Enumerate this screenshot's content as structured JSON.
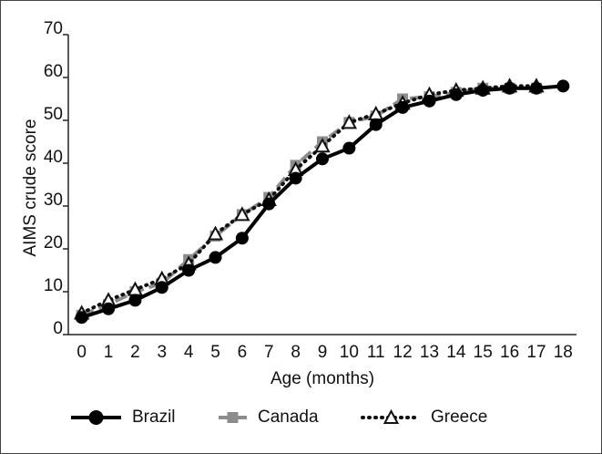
{
  "chart_data": {
    "type": "line",
    "x_label": "Age (months)",
    "y_label": "AIMS crude score",
    "categories": [
      "0",
      "1",
      "2",
      "3",
      "4",
      "5",
      "6",
      "7",
      "8",
      "9",
      "10",
      "11",
      "12",
      "13",
      "14",
      "15",
      "16",
      "17",
      "18"
    ],
    "series": [
      {
        "name": "Canada",
        "color": "#8c8c8c",
        "dash": "dashed",
        "marker": "square",
        "values": [
          4.5,
          7,
          10,
          12,
          17.5,
          23,
          28,
          32,
          39.5,
          45,
          49.5,
          51,
          55,
          55.5,
          56.5,
          57.5,
          57.5,
          57.5,
          null
        ]
      },
      {
        "name": "Greece",
        "color": "#111111",
        "dash": "dotted",
        "marker": "triangle",
        "values": [
          5,
          8,
          10.5,
          13,
          16.5,
          23.5,
          28,
          31.5,
          38.5,
          44,
          49.5,
          51.5,
          54,
          56,
          57,
          57.5,
          58,
          58,
          null
        ]
      },
      {
        "name": "Brazil",
        "color": "#000000",
        "dash": "solid",
        "marker": "circle",
        "values": [
          4,
          6,
          8,
          11,
          15,
          18,
          22.5,
          30.5,
          36.5,
          41,
          43.5,
          49,
          53,
          54.5,
          56,
          57,
          57.5,
          57.5,
          58
        ]
      }
    ],
    "legend_order": [
      2,
      0,
      1
    ],
    "ylim": [
      0,
      70
    ],
    "yticks": [
      0,
      10,
      20,
      30,
      40,
      50,
      60,
      70
    ],
    "grid": false
  }
}
